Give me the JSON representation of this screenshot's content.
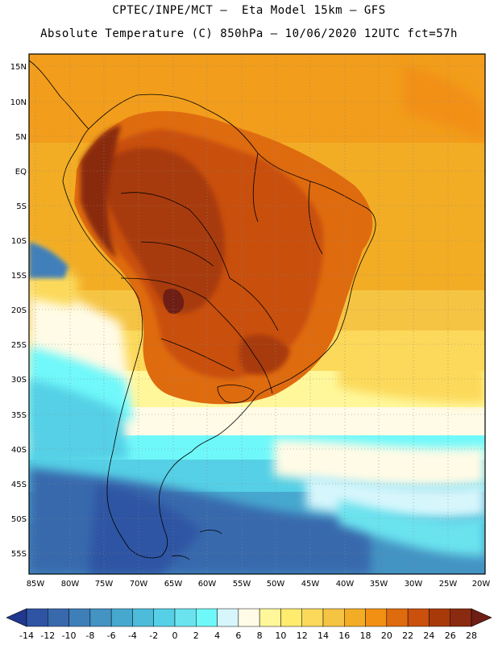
{
  "header": {
    "line1": "CPTEC/INPE/MCT —  Eta Model 15km — GFS",
    "line2": "Absolute Temperature (C) 850hPa — 10/06/2020 12UTC fct=57h"
  },
  "map": {
    "lat_labels": [
      "15N",
      "10N",
      "5N",
      "EQ",
      "5S",
      "10S",
      "15S",
      "20S",
      "25S",
      "30S",
      "35S",
      "40S",
      "45S",
      "50S",
      "55S"
    ],
    "lon_labels": [
      "85W",
      "80W",
      "75W",
      "70W",
      "65W",
      "60W",
      "55W",
      "50W",
      "45W",
      "40W",
      "35W",
      "30W",
      "25W",
      "20W"
    ],
    "region": "South America"
  },
  "colorbar": {
    "labels": [
      "-14",
      "-12",
      "-10",
      "-8",
      "-6",
      "-4",
      "-2",
      "0",
      "2",
      "4",
      "6",
      "8",
      "10",
      "12",
      "14",
      "16",
      "18",
      "20",
      "22",
      "24",
      "26",
      "28"
    ],
    "colors": [
      "#21388f",
      "#2e54a3",
      "#3869ad",
      "#3f7fb9",
      "#4393c3",
      "#47a8cf",
      "#4cbcda",
      "#55d0e6",
      "#6ae3ef",
      "#6ff8fa",
      "#d6f6fc",
      "#fffbe6",
      "#fff79a",
      "#ffeb6e",
      "#fcd95a",
      "#f6c443",
      "#f2ad25",
      "#f29014",
      "#df6b0f",
      "#c9500d",
      "#a83a0a",
      "#8a2a10",
      "#6e1e14"
    ]
  }
}
